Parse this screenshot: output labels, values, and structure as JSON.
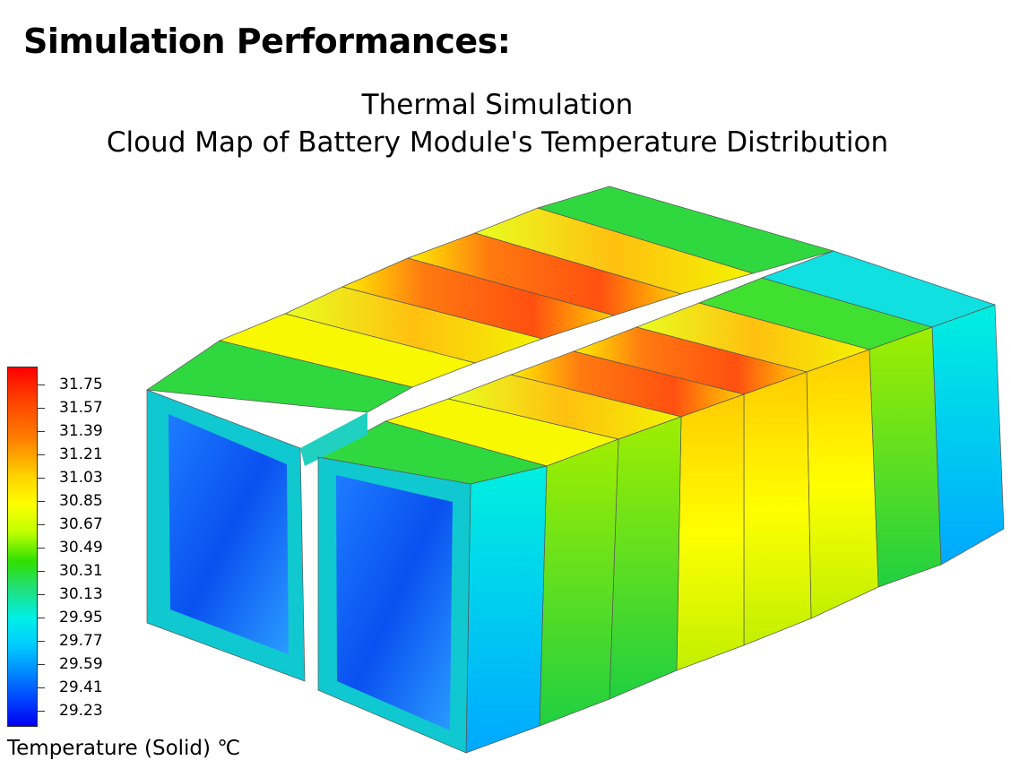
{
  "heading": "Simulation Performances:",
  "title_line1": "Thermal Simulation",
  "title_line2": "Cloud Map of Battery Module's Temperature Distribution",
  "legend": {
    "values": [
      "31.75",
      "31.57",
      "31.39",
      "31.21",
      "31.03",
      "30.85",
      "30.67",
      "30.49",
      "30.31",
      "30.13",
      "29.95",
      "29.77",
      "29.59",
      "29.41",
      "29.23"
    ],
    "caption": "Temperature (Solid) ℃",
    "colors": [
      "#ff0000",
      "#ff8000",
      "#ffff00",
      "#30e000",
      "#00f0e8",
      "#0080ff",
      "#0000f0"
    ]
  }
}
